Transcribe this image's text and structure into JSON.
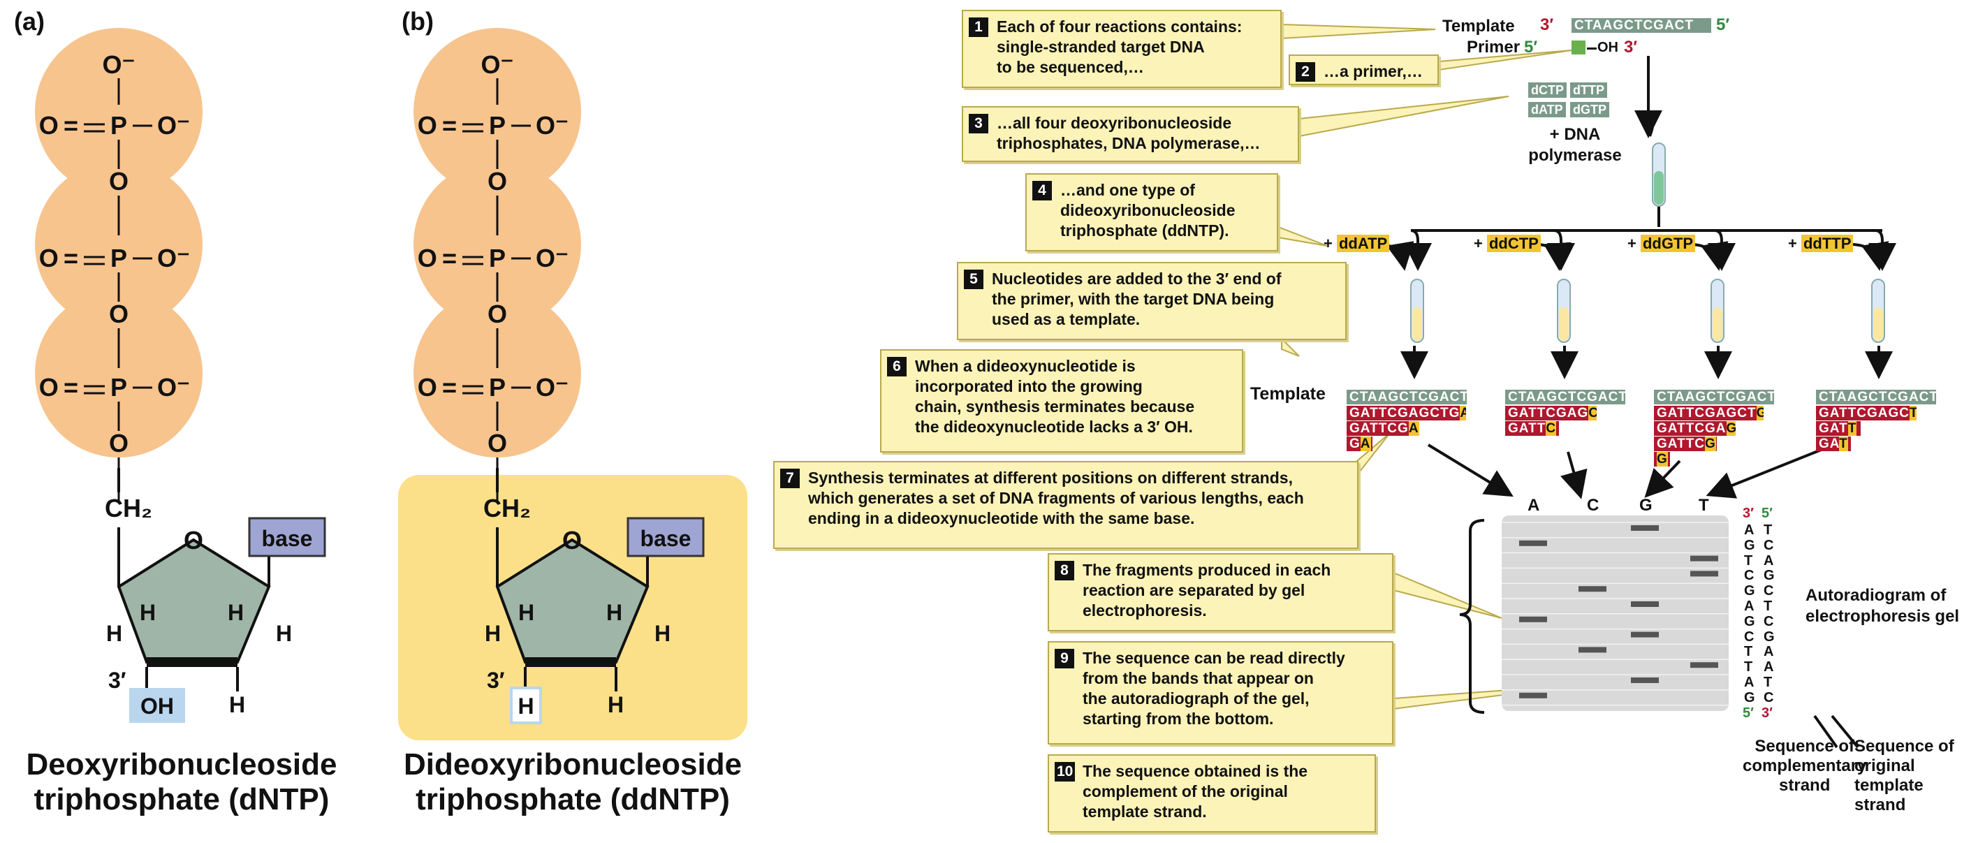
{
  "panel_a": {
    "label": "(a)",
    "caption": "Deoxyribonucleoside\ntriphosphate (dNTP)",
    "base_label": "base",
    "o_minus": "O⁻",
    "o": "O",
    "p": "P",
    "eq": "O =",
    "ch2": "CH₂",
    "h": "H",
    "three_prime": "3′",
    "oh": "OH"
  },
  "panel_b": {
    "label": "(b)",
    "caption": "Dideoxyribonucleoside\ntriphosphate (ddNTP)",
    "base_label": "base",
    "h_box": "H"
  },
  "steps": [
    {
      "num": "1",
      "text": "Each of four reactions contains:\nsingle-stranded target DNA\nto be sequenced,…"
    },
    {
      "num": "2",
      "text": "…a primer,…"
    },
    {
      "num": "3",
      "text": "…all four deoxyribonucleoside\ntriphosphates, DNA polymerase,…"
    },
    {
      "num": "4",
      "text": "…and one type of\ndideoxyribonucleoside\ntriphosphate (ddNTP)."
    },
    {
      "num": "5",
      "text": "Nucleotides are added to the 3′ end of\nthe primer, with the target DNA being\nused as a template."
    },
    {
      "num": "6",
      "text": "When a dideoxynucleotide is\nincorporated into the growing\nchain, synthesis terminates because\nthe dideoxynucleotide lacks a 3′ OH."
    },
    {
      "num": "7",
      "text": "Synthesis terminates at different positions on different strands,\nwhich generates a set of DNA fragments of various lengths, each\nending in a dideoxynucleotide with the same base."
    },
    {
      "num": "8",
      "text": "The fragments produced in each\nreaction are separated by gel\nelectrophoresis."
    },
    {
      "num": "9",
      "text": "The sequence can be read directly\nfrom the bands that appear on\nthe autoradiograph of the gel,\nstarting from the bottom."
    },
    {
      "num": "10",
      "text": "The sequence obtained is the\ncomplement of the original\ntemplate strand."
    }
  ],
  "top": {
    "template_label": "Template",
    "primer_label": "Primer",
    "three_prime": "3′",
    "five_prime": "5′",
    "template_seq": "CTAAGCTCGACT",
    "primer_oh": "OH",
    "dntps": [
      "dCTP",
      "dTTP",
      "dATP",
      "dGTP"
    ],
    "dna_polymerase": "+ DNA\npolymerase"
  },
  "reactions": [
    {
      "dd": "ddATP",
      "prefix": "+ ",
      "fragments": [
        {
          "body": "GATTCGAGCTG",
          "end": "A"
        },
        {
          "body": "GATTCG",
          "end": "A"
        },
        {
          "body": "G",
          "end": "A"
        }
      ]
    },
    {
      "dd": "ddCTP",
      "prefix": "+ ",
      "fragments": [
        {
          "body": "GATTCGAG",
          "end": "C"
        },
        {
          "body": "GATT",
          "end": "C"
        }
      ]
    },
    {
      "dd": "ddGTP",
      "prefix": "+ ",
      "fragments": [
        {
          "body": "GATTCGAGCT",
          "end": "G"
        },
        {
          "body": "GATTCGA",
          "end": "G"
        },
        {
          "body": "GATTC",
          "end": "G"
        },
        {
          "body": "",
          "end": "G"
        }
      ]
    },
    {
      "dd": "ddTTP",
      "prefix": "+ ",
      "fragments": [
        {
          "body": "GATTCGAGC",
          "end": "T"
        },
        {
          "body": "GAT",
          "end": "T"
        },
        {
          "body": "GA",
          "end": "T"
        }
      ]
    }
  ],
  "template_row_label": "Template",
  "gel": {
    "lanes": [
      "A",
      "C",
      "G",
      "T"
    ],
    "bands": [
      {
        "lane": "A",
        "row": 1
      },
      {
        "lane": "G",
        "row": 2
      },
      {
        "lane": "T",
        "row": 3
      },
      {
        "lane": "C",
        "row": 4
      },
      {
        "lane": "G",
        "row": 5
      },
      {
        "lane": "A",
        "row": 6
      },
      {
        "lane": "G",
        "row": 7
      },
      {
        "lane": "C",
        "row": 8
      },
      {
        "lane": "T",
        "row": 9
      },
      {
        "lane": "T",
        "row": 10
      },
      {
        "lane": "A",
        "row": 11
      },
      {
        "lane": "G",
        "row": 12
      }
    ],
    "complementary": [
      "A",
      "G",
      "T",
      "C",
      "G",
      "A",
      "G",
      "C",
      "T",
      "T",
      "A",
      "G"
    ],
    "original": [
      "T",
      "C",
      "A",
      "G",
      "C",
      "T",
      "C",
      "G",
      "A",
      "A",
      "T",
      "C"
    ],
    "top_three": "3′",
    "top_five": "5′",
    "bottom_five": "5′",
    "bottom_three": "3′",
    "autoradiogram_label": "Autoradiogram of\nelectrophoresis gel",
    "complementary_label": "Sequence of\ncomplementary\nstrand",
    "original_label": "Sequence of\noriginal template\nstrand"
  },
  "colors": {
    "phosphate": "#f7c48e",
    "sugar": "#9fb5a8",
    "base_box": "#9fa5d2",
    "oh_box": "#b9d6ee",
    "dd_background": "#fbe089",
    "callout": "#fbf3b8",
    "template_strand": "#7b9a8a",
    "fragment": "#b0182e",
    "terminator": "#f4c430",
    "gel": "#d9d9d9",
    "band": "#555555",
    "prime_red": "#b0182e",
    "prime_green": "#2e8b3a"
  }
}
